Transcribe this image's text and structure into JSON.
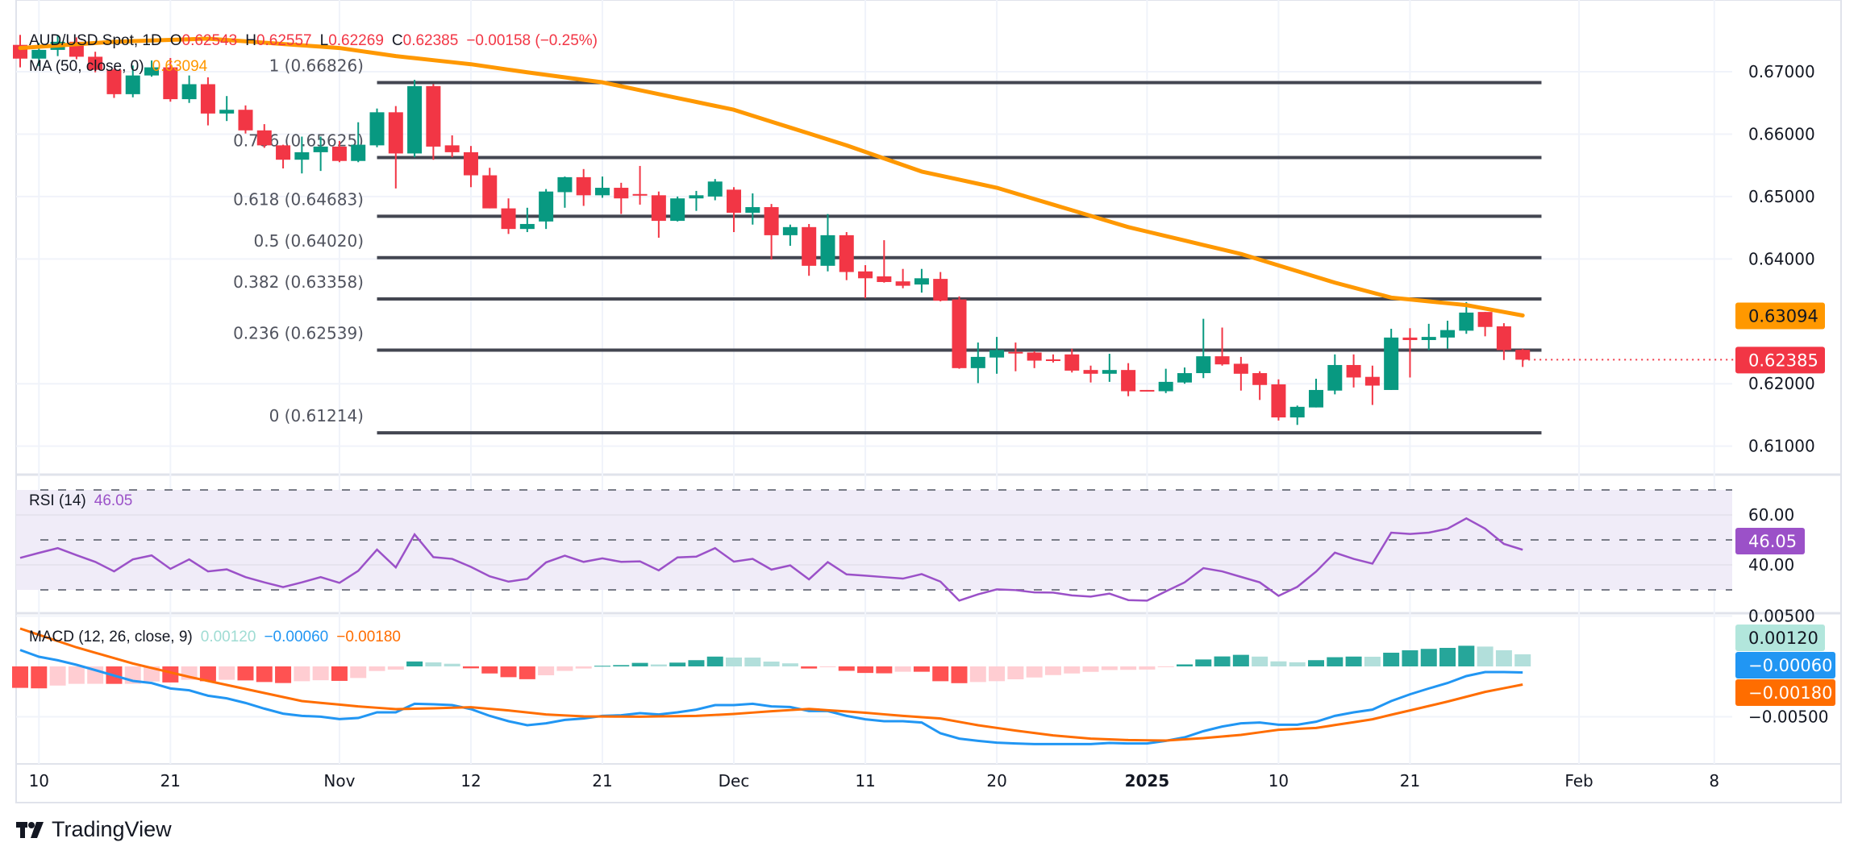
{
  "header": {
    "symbol": "AUD/USD Spot, 1D",
    "o_label": "O",
    "o_value": "0.62543",
    "h_label": "H",
    "h_value": "0.62557",
    "l_label": "L",
    "l_value": "0.62269",
    "c_label": "C",
    "c_value": "0.62385",
    "change": "−0.00158 (−0.25%)",
    "ma_label": "MA (50, close, 0)",
    "ma_value": "0.63094"
  },
  "rsi_legend": {
    "label": "RSI (14)",
    "value": "46.05"
  },
  "macd_legend": {
    "label": "MACD (12, 26, close, 9)",
    "hist": "0.00120",
    "macd": "−0.00060",
    "signal": "−0.00180"
  },
  "logo": {
    "text": "TradingView"
  },
  "colors": {
    "up": "#089981",
    "down": "#f23645",
    "ma": "#ff9800",
    "fib": "#434651",
    "rsi": "#9b51c8",
    "macd": "#2196f3",
    "signal": "#ff6d00"
  },
  "chart_data": [
    {
      "type": "candlestick",
      "title": "AUD/USD Spot, 1D",
      "ylim": [
        0.6045,
        0.6765
      ],
      "yticks": [
        "0.67000",
        "0.66000",
        "0.65000",
        "0.64000",
        "0.62000",
        "0.61000"
      ],
      "ytick_values": [
        0.67,
        0.66,
        0.65,
        0.64,
        0.62,
        0.61
      ],
      "xticks": [
        {
          "label": "10",
          "bar": 1
        },
        {
          "label": "21",
          "bar": 8
        },
        {
          "label": "Nov",
          "bar": 17
        },
        {
          "label": "12",
          "bar": 24
        },
        {
          "label": "21",
          "bar": 31
        },
        {
          "label": "Dec",
          "bar": 38
        },
        {
          "label": "11",
          "bar": 45
        },
        {
          "label": "20",
          "bar": 52
        },
        {
          "label": "2025",
          "bar": 60,
          "bold": true
        },
        {
          "label": "10",
          "bar": 67
        },
        {
          "label": "21",
          "bar": 74
        },
        {
          "label": "Feb",
          "bar": 83
        },
        {
          "label": "8",
          "bar": 90.2
        }
      ],
      "ohlc": [
        [
          0.6743,
          0.6759,
          0.6707,
          0.6721
        ],
        [
          0.6721,
          0.6746,
          0.6709,
          0.6735
        ],
        [
          0.6735,
          0.6759,
          0.6725,
          0.6748
        ],
        [
          0.6748,
          0.6755,
          0.672,
          0.6724
        ],
        [
          0.6724,
          0.6732,
          0.6699,
          0.6703
        ],
        [
          0.6703,
          0.6705,
          0.6658,
          0.6664
        ],
        [
          0.6664,
          0.671,
          0.6659,
          0.6694
        ],
        [
          0.6694,
          0.6718,
          0.6692,
          0.6707
        ],
        [
          0.6707,
          0.6722,
          0.6652,
          0.6656
        ],
        [
          0.6656,
          0.6694,
          0.665,
          0.668
        ],
        [
          0.668,
          0.6691,
          0.6614,
          0.6633
        ],
        [
          0.6633,
          0.6661,
          0.6621,
          0.6639
        ],
        [
          0.6639,
          0.6646,
          0.6601,
          0.6606
        ],
        [
          0.6606,
          0.6616,
          0.6578,
          0.6582
        ],
        [
          0.6582,
          0.6583,
          0.6545,
          0.6559
        ],
        [
          0.6559,
          0.6596,
          0.6537,
          0.6571
        ],
        [
          0.6571,
          0.6596,
          0.6541,
          0.658
        ],
        [
          0.658,
          0.6589,
          0.6555,
          0.6557
        ],
        [
          0.6557,
          0.6619,
          0.6555,
          0.6583
        ],
        [
          0.6582,
          0.6641,
          0.6579,
          0.6635
        ],
        [
          0.6635,
          0.6645,
          0.6513,
          0.6569
        ],
        [
          0.6569,
          0.6687,
          0.6563,
          0.6677
        ],
        [
          0.6677,
          0.668,
          0.6559,
          0.658
        ],
        [
          0.6582,
          0.6598,
          0.6563,
          0.6571
        ],
        [
          0.6571,
          0.6581,
          0.6515,
          0.6534
        ],
        [
          0.6534,
          0.6546,
          0.6481,
          0.6481
        ],
        [
          0.6481,
          0.6497,
          0.644,
          0.6448
        ],
        [
          0.6448,
          0.6482,
          0.6443,
          0.6456
        ],
        [
          0.646,
          0.6512,
          0.6448,
          0.6508
        ],
        [
          0.6507,
          0.6532,
          0.6482,
          0.6531
        ],
        [
          0.6531,
          0.6544,
          0.6485,
          0.6502
        ],
        [
          0.6502,
          0.6532,
          0.6498,
          0.6514
        ],
        [
          0.6514,
          0.6522,
          0.6472,
          0.6497
        ],
        [
          0.6504,
          0.6549,
          0.6487,
          0.6502
        ],
        [
          0.6502,
          0.6508,
          0.6434,
          0.6461
        ],
        [
          0.6461,
          0.65,
          0.646,
          0.6497
        ],
        [
          0.6497,
          0.6509,
          0.6477,
          0.6502
        ],
        [
          0.65,
          0.6528,
          0.6494,
          0.6524
        ],
        [
          0.6511,
          0.6515,
          0.6443,
          0.6474
        ],
        [
          0.6474,
          0.6505,
          0.6455,
          0.6483
        ],
        [
          0.6483,
          0.6488,
          0.6399,
          0.6438
        ],
        [
          0.6438,
          0.6455,
          0.6421,
          0.6451
        ],
        [
          0.6451,
          0.6456,
          0.6373,
          0.6389
        ],
        [
          0.6389,
          0.6472,
          0.638,
          0.6438
        ],
        [
          0.6438,
          0.6443,
          0.6366,
          0.6379
        ],
        [
          0.638,
          0.639,
          0.6337,
          0.6369
        ],
        [
          0.6372,
          0.643,
          0.6362,
          0.6363
        ],
        [
          0.6364,
          0.6384,
          0.6353,
          0.6357
        ],
        [
          0.6359,
          0.6384,
          0.6346,
          0.6369
        ],
        [
          0.6368,
          0.6379,
          0.6332,
          0.6333
        ],
        [
          0.6335,
          0.634,
          0.6224,
          0.6225
        ],
        [
          0.6225,
          0.6266,
          0.6201,
          0.6243
        ],
        [
          0.6242,
          0.6275,
          0.6216,
          0.6254
        ],
        [
          0.6251,
          0.6266,
          0.622,
          0.6249
        ],
        [
          0.625,
          0.6252,
          0.6225,
          0.6237
        ],
        [
          0.6239,
          0.6247,
          0.6234,
          0.6237
        ],
        [
          0.6247,
          0.6256,
          0.6218,
          0.6221
        ],
        [
          0.6222,
          0.6229,
          0.6202,
          0.6216
        ],
        [
          0.6216,
          0.6248,
          0.6203,
          0.6222
        ],
        [
          0.6222,
          0.6233,
          0.618,
          0.6188
        ],
        [
          0.619,
          0.619,
          0.6188,
          0.6188
        ],
        [
          0.6188,
          0.6224,
          0.6185,
          0.6203
        ],
        [
          0.6202,
          0.6226,
          0.62,
          0.6217
        ],
        [
          0.6217,
          0.6304,
          0.6209,
          0.6244
        ],
        [
          0.6244,
          0.629,
          0.6229,
          0.6231
        ],
        [
          0.6232,
          0.6243,
          0.6189,
          0.6216
        ],
        [
          0.6217,
          0.622,
          0.6174,
          0.6198
        ],
        [
          0.6199,
          0.6207,
          0.6141,
          0.6146
        ],
        [
          0.6146,
          0.6165,
          0.6134,
          0.6163
        ],
        [
          0.6162,
          0.6208,
          0.6162,
          0.619
        ],
        [
          0.6189,
          0.6247,
          0.6183,
          0.623
        ],
        [
          0.623,
          0.6247,
          0.6194,
          0.621
        ],
        [
          0.6211,
          0.6229,
          0.6166,
          0.6197
        ],
        [
          0.619,
          0.6288,
          0.619,
          0.6274
        ],
        [
          0.6274,
          0.6289,
          0.621,
          0.627
        ],
        [
          0.627,
          0.6296,
          0.6254,
          0.6275
        ],
        [
          0.6274,
          0.6301,
          0.6256,
          0.6286
        ],
        [
          0.6285,
          0.6331,
          0.628,
          0.6314
        ],
        [
          0.6315,
          0.6315,
          0.6276,
          0.6291
        ],
        [
          0.6292,
          0.6297,
          0.6238,
          0.6254
        ],
        [
          0.62543,
          0.62557,
          0.62269,
          0.62385
        ]
      ],
      "ma50_points": [
        [
          0,
          0.6738
        ],
        [
          5,
          0.6748
        ],
        [
          10,
          0.6753
        ],
        [
          17,
          0.6738
        ],
        [
          20,
          0.6725
        ],
        [
          24,
          0.6712
        ],
        [
          27,
          0.6699
        ],
        [
          31,
          0.6683
        ],
        [
          38,
          0.6639
        ],
        [
          44,
          0.6582
        ],
        [
          48,
          0.654
        ],
        [
          52,
          0.6514
        ],
        [
          59,
          0.6451
        ],
        [
          65,
          0.6408
        ],
        [
          70,
          0.6362
        ],
        [
          73,
          0.6338
        ],
        [
          77,
          0.6326
        ],
        [
          80,
          0.63094
        ]
      ],
      "fib_levels": [
        {
          "label": "1 (0.66826)",
          "value": 0.66826
        },
        {
          "label": "0.786 (0.65625)",
          "value": 0.65625
        },
        {
          "label": "0.618 (0.64683)",
          "value": 0.64683
        },
        {
          "label": "0.5 (0.64020)",
          "value": 0.6402
        },
        {
          "label": "0.382 (0.63358)",
          "value": 0.63358
        },
        {
          "label": "0.236 (0.62539)",
          "value": 0.62539
        },
        {
          "label": "0 (0.61214)",
          "value": 0.61214
        }
      ],
      "fib_range_bars": [
        19,
        81
      ],
      "last_price": {
        "value": 0.62385,
        "label": "0.62385"
      },
      "ma_price": {
        "value": 0.63094,
        "label": "0.63094"
      }
    },
    {
      "type": "line",
      "title": "RSI (14)",
      "ylim": [
        20,
        75
      ],
      "bands": [
        70,
        50,
        30
      ],
      "yticks": [
        "60.00",
        "40.00"
      ],
      "ytick_values": [
        60,
        40
      ],
      "values": [
        42.8,
        44.8,
        46.7,
        43.9,
        41.2,
        37.4,
        42.2,
        43.8,
        38.4,
        42.2,
        37.4,
        38.2,
        35.1,
        33.0,
        31.1,
        33.0,
        35.1,
        32.8,
        37.6,
        46.1,
        39.0,
        52.2,
        43.1,
        42.4,
        39.2,
        35.4,
        33.3,
        34.4,
        41.0,
        43.7,
        41.2,
        42.6,
        41.2,
        41.4,
        37.8,
        43.0,
        43.3,
        46.7,
        41.3,
        42.4,
        38.1,
        39.8,
        34.2,
        41.1,
        36.2,
        35.7,
        35.1,
        34.5,
        36.3,
        33.3,
        25.7,
        28.2,
        30.2,
        29.9,
        29.0,
        28.9,
        27.8,
        27.3,
        28.5,
        25.9,
        25.7,
        29.4,
        33.0,
        38.7,
        37.4,
        35.2,
        33.0,
        27.6,
        31.2,
        37.3,
        44.9,
        42.4,
        40.5,
        52.9,
        52.4,
        52.9,
        54.5,
        58.6,
        54.5,
        48.4,
        46.05
      ],
      "last_label": "46.05"
    },
    {
      "type": "line+bar",
      "title": "MACD (12, 26, close, 9)",
      "value_scale": 0.001,
      "yticks": [
        "0.00500",
        "−0.00500"
      ],
      "ytick_values": [
        5,
        -5
      ],
      "macd": [
        1.63,
        0.96,
        0.61,
        0.16,
        -0.37,
        -0.91,
        -1.44,
        -1.65,
        -2.19,
        -2.37,
        -2.91,
        -3.17,
        -3.63,
        -4.19,
        -4.69,
        -4.91,
        -4.99,
        -5.23,
        -5.12,
        -4.56,
        -4.56,
        -3.71,
        -3.76,
        -3.84,
        -4.24,
        -4.91,
        -5.44,
        -5.84,
        -5.65,
        -5.31,
        -5.17,
        -4.91,
        -4.85,
        -4.64,
        -4.77,
        -4.56,
        -4.29,
        -3.84,
        -3.84,
        -3.71,
        -3.97,
        -4.03,
        -4.43,
        -4.43,
        -4.91,
        -5.25,
        -5.44,
        -5.44,
        -5.57,
        -6.64,
        -7.17,
        -7.39,
        -7.57,
        -7.65,
        -7.71,
        -7.71,
        -7.71,
        -7.71,
        -7.6,
        -7.65,
        -7.65,
        -7.39,
        -7.04,
        -6.43,
        -5.97,
        -5.65,
        -5.57,
        -5.79,
        -5.79,
        -5.49,
        -4.91,
        -4.56,
        -4.29,
        -3.44,
        -2.77,
        -2.19,
        -1.65,
        -0.96,
        -0.56,
        -0.56,
        -0.6
      ],
      "signal_points": [
        [
          0,
          3.76
        ],
        [
          3,
          1.89
        ],
        [
          6,
          0.29
        ],
        [
          9,
          -1.04
        ],
        [
          12,
          -2.24
        ],
        [
          15,
          -3.44
        ],
        [
          18,
          -3.97
        ],
        [
          20,
          -4.24
        ],
        [
          22,
          -4.16
        ],
        [
          24,
          -4.05
        ],
        [
          26,
          -4.37
        ],
        [
          28,
          -4.77
        ],
        [
          30,
          -4.96
        ],
        [
          33,
          -4.99
        ],
        [
          36,
          -4.91
        ],
        [
          38,
          -4.72
        ],
        [
          40,
          -4.45
        ],
        [
          42,
          -4.22
        ],
        [
          45,
          -4.6
        ],
        [
          47,
          -4.91
        ],
        [
          49,
          -5.17
        ],
        [
          51,
          -5.84
        ],
        [
          53,
          -6.37
        ],
        [
          55,
          -6.85
        ],
        [
          57,
          -7.17
        ],
        [
          59,
          -7.31
        ],
        [
          61,
          -7.36
        ],
        [
          63,
          -7.12
        ],
        [
          65,
          -6.8
        ],
        [
          67,
          -6.29
        ],
        [
          69,
          -6.11
        ],
        [
          72,
          -5.25
        ],
        [
          73,
          -4.8
        ],
        [
          74,
          -4.37
        ],
        [
          76,
          -3.49
        ],
        [
          78,
          -2.53
        ],
        [
          80,
          -1.8
        ]
      ],
      "badges": {
        "hist": "0.00120",
        "macd": "−0.00060",
        "signal": "−0.00180"
      }
    }
  ]
}
